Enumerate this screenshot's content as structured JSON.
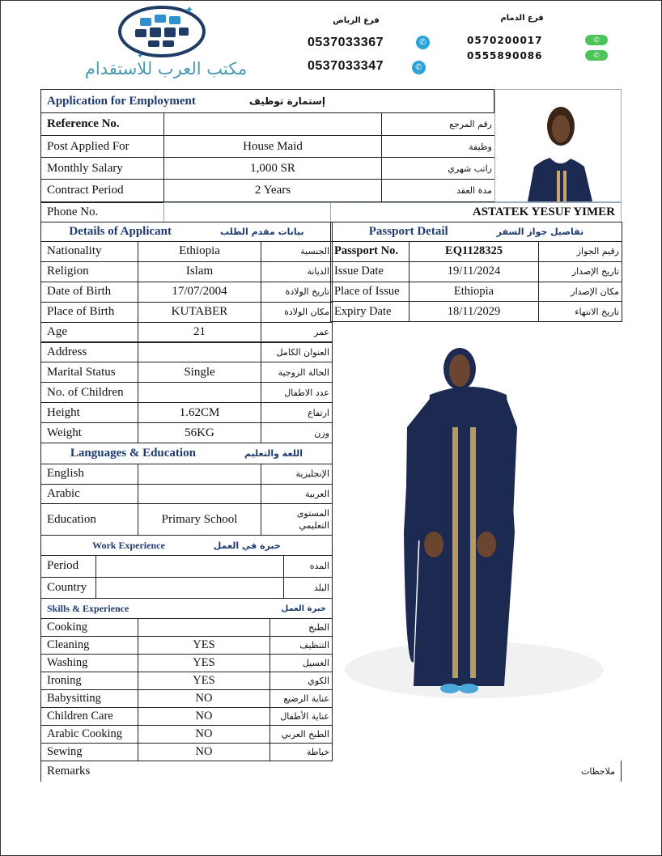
{
  "header": {
    "logo_text": "مكتب العرب للاستقدام",
    "riyadh_branch": "فرع الرياض",
    "riyadh_phones": [
      "0537033367",
      "0537033347"
    ],
    "dammam_branch": "فرع الدمام",
    "dammam_phones": [
      "0570200017",
      "0555890086"
    ],
    "icons": {
      "riyadh": "whatsapp-icon",
      "dammam": "phone-icon"
    },
    "colors": {
      "logo": "#4a9bb0",
      "whatsapp": "#2aa3d8",
      "phone": "#4cc45a",
      "heading": "#1d3b6e"
    }
  },
  "form": {
    "title_en": "Application for Employment",
    "title_ar": "إستمارة توظيف",
    "rows": [
      {
        "en": "Reference No.",
        "value": "",
        "ar": "رقم المرجع"
      },
      {
        "en": "Post Applied For",
        "value": "House Maid",
        "ar": "وظيفة"
      },
      {
        "en": "Monthly Salary",
        "value": "1,000 SR",
        "ar": "راتب شهري"
      },
      {
        "en": "Contract Period",
        "value": "2 Years",
        "ar": "مدة العقد"
      }
    ],
    "phone_label": "Phone No.",
    "phone_value": "",
    "applicant_name": "ASTATEK YESUF YIMER"
  },
  "applicant": {
    "title_en": "Details of Applicant",
    "title_ar": "بيانات مقدم الطلب",
    "rows": [
      {
        "en": "Nationality",
        "value": "Ethiopia",
        "ar": "الجنسية"
      },
      {
        "en": "Religion",
        "value": "Islam",
        "ar": "الديانة"
      },
      {
        "en": "Date of Birth",
        "value": "17/07/2004",
        "ar": "تاريخ الولادة"
      },
      {
        "en": "Place of Birth",
        "value": "KUTABER",
        "ar": "مكان الولادة"
      },
      {
        "en": "Age",
        "value": "21",
        "ar": "عمر"
      },
      {
        "en": "Address",
        "value": "",
        "ar": "العنوان الكامل"
      },
      {
        "en": "Marital Status",
        "value": "Single",
        "ar": "الحالة الزوجية"
      },
      {
        "en": "No. of Children",
        "value": "",
        "ar": "عدد الاطفال"
      },
      {
        "en": "Height",
        "value": "1.62CM",
        "ar": "ارتفاع"
      },
      {
        "en": "Weight",
        "value": "56KG",
        "ar": "وزن"
      }
    ]
  },
  "languages": {
    "title_en": "Languages & Education",
    "title_ar": "اللغة والتعليم",
    "rows": [
      {
        "en": "English",
        "value": "",
        "ar": "الإنجليزية"
      },
      {
        "en": "Arabic",
        "value": "",
        "ar": "العربية"
      },
      {
        "en": "Education",
        "value": "Primary School",
        "ar": "المستوى التعليمي"
      }
    ]
  },
  "work": {
    "title_en": "Work Experience",
    "title_ar": "خبرة في العمل",
    "rows": [
      {
        "en": "Period",
        "value": "",
        "ar": "المده"
      },
      {
        "en": "Country",
        "value": "",
        "ar": "البلد"
      }
    ]
  },
  "skills": {
    "title_en": "Skills & Experience",
    "title_ar": "خبرة العمل",
    "rows": [
      {
        "en": "Cooking",
        "value": "",
        "ar": "الطبخ"
      },
      {
        "en": "Cleaning",
        "value": "YES",
        "ar": "التنظيف"
      },
      {
        "en": "Washing",
        "value": "YES",
        "ar": "الغسيل"
      },
      {
        "en": "Ironing",
        "value": "YES",
        "ar": "الكوي"
      },
      {
        "en": "Babysitting",
        "value": "NO",
        "ar": "عناية الرضيع"
      },
      {
        "en": "Children Care",
        "value": "NO",
        "ar": "عناية الأطفال"
      },
      {
        "en": "Arabic Cooking",
        "value": "NO",
        "ar": "الطبخ العربي"
      },
      {
        "en": "Sewing",
        "value": "NO",
        "ar": "خياطة"
      }
    ]
  },
  "passport": {
    "title_en": "Passport Detail",
    "title_ar": "تفاصيل جواز السفر",
    "rows": [
      {
        "en": "Passport No.",
        "value": "EQ1128325",
        "ar": "رقيم الجواز"
      },
      {
        "en": "Issue Date",
        "value": "19/11/2024",
        "ar": "تاريخ الإصدار"
      },
      {
        "en": "Place of Issue",
        "value": "Ethiopia",
        "ar": "مكان الإصدار"
      },
      {
        "en": "Expiry Date",
        "value": "18/11/2029",
        "ar": "تاريخ الانتهاء"
      }
    ]
  },
  "remarks": {
    "en": "Remarks",
    "ar": "ملاحظات",
    "value": ""
  }
}
